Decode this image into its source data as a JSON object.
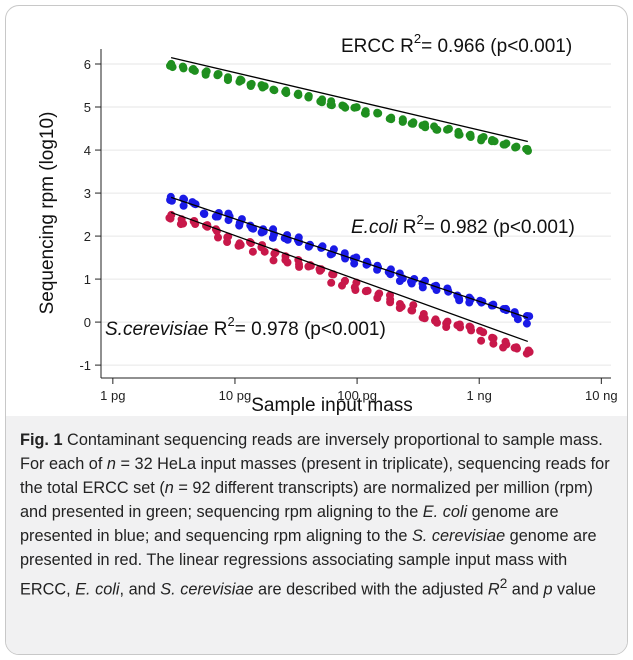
{
  "chart_data": {
    "type": "scatter",
    "xlabel": "Sample input mass",
    "ylabel": "Sequencing rpm (log10)",
    "x_scale": "log",
    "x_ticks": [
      {
        "value": 1,
        "label": "1 pg"
      },
      {
        "value": 10,
        "label": "10 pg"
      },
      {
        "value": 100,
        "label": "100 pg"
      },
      {
        "value": 1000,
        "label": "1 ng"
      },
      {
        "value": 10000,
        "label": "10 ng"
      }
    ],
    "y_ticks": [
      -1,
      0,
      1,
      2,
      3,
      4,
      5,
      6
    ],
    "xlim": [
      0.8,
      12000
    ],
    "ylim": [
      -1.3,
      6.35
    ],
    "grid": "horizontal",
    "x_range": [
      3,
      2500
    ],
    "series": [
      {
        "key": "ercc",
        "color": "#1f8f1f",
        "start_y": 5.98,
        "end_y": 4.0,
        "noise": 0.05
      },
      {
        "key": "ecoli",
        "color": "#1a1ae6",
        "start_y": 2.88,
        "end_y": 0.05,
        "noise": 0.1
      },
      {
        "key": "scer",
        "color": "#c8184a",
        "start_y": 2.5,
        "end_y": -0.75,
        "noise": 0.13
      }
    ],
    "fits": [
      {
        "key": "ercc",
        "x1": 3,
        "y1": 6.15,
        "x2": 2500,
        "y2": 4.2
      },
      {
        "key": "ecoli",
        "x1": 3,
        "y1": 2.9,
        "x2": 2500,
        "y2": 0.1
      },
      {
        "key": "scer",
        "x1": 3,
        "y1": 2.55,
        "x2": 2500,
        "y2": -0.45
      }
    ],
    "annotations": {
      "ercc": {
        "name": "ERCC",
        "r2_label": "R",
        "r2_sup": "2",
        "r2_value": "= 0.966 (p<0.001)"
      },
      "ecoli": {
        "name": "E.coli",
        "r2_label": "R",
        "r2_sup": "2",
        "r2_value": "= 0.982 (p<0.001)"
      },
      "scer": {
        "name": "S.cerevisiae",
        "r2_label": "R",
        "r2_sup": "2",
        "r2_value": "= 0.978 (p<0.001)"
      }
    }
  },
  "caption": {
    "label": "Fig. 1",
    "text_1": " Contaminant sequencing reads are inversely proportional to sample mass. For each of ",
    "n_var": "n",
    "text_2": " = 32 HeLa input masses (present in triplicate), sequencing reads for the total ERCC set (",
    "n_var2": "n",
    "text_3": " = 92 different transcripts) are normalized per million (rpm) and presented in green; sequencing rpm aligning to the ",
    "ecoli_1": "E. coli",
    "text_4": " genome are presented in blue; and sequencing rpm aligning to the ",
    "scer_1": "S. cerevisiae",
    "text_5": " genome are presented in red. The linear regressions associating sample input mass with ERCC, ",
    "ecoli_2": "E. coli",
    "text_6": ", and ",
    "scer_2": "S. cerevisiae",
    "text_7": " are described with the adjusted ",
    "r_var": "R",
    "r_sup": "2",
    "text_8": " and ",
    "p_var": "p",
    "text_9": " value"
  }
}
